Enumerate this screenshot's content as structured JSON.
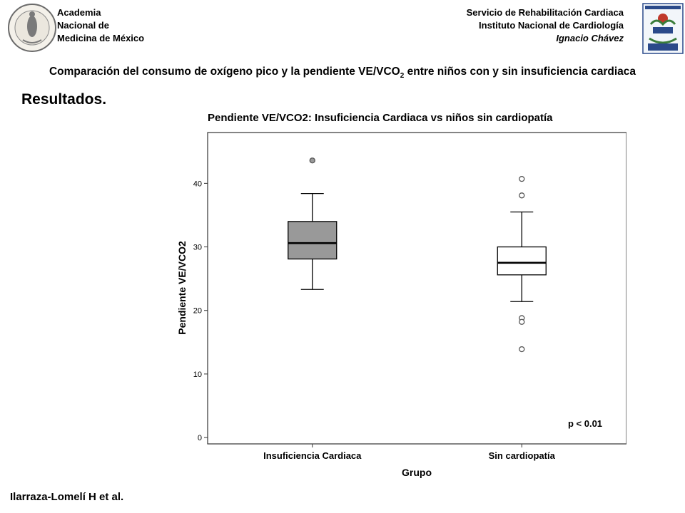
{
  "header": {
    "left_lines": [
      "Academia",
      "Nacional de",
      "Medicina de México"
    ],
    "right_lines": [
      "Servicio de Rehabilitación Cardiaca",
      "Instituto Nacional de Cardiología",
      "Ignacio Chávez"
    ]
  },
  "logos": {
    "left": "Academia Nacional de Medicina de México seal (150 años)",
    "right": "Instituto Nacional de Cardiología Ignacio Chávez crest"
  },
  "subtitle_parts": {
    "before": "Comparación del consumo de oxígeno pico y la pendiente VE/VCO",
    "subscript": "2",
    "after": " entre niños con y sin insuficiencia cardiaca"
  },
  "section_title": "Resultados.",
  "author": "Ilarraza-Lomelí H et al.",
  "colors": {
    "box_ic": "#999999",
    "box_sin": "#ffffff",
    "outlier_ic": "#999999"
  },
  "chart_data": {
    "type": "box",
    "title": "Pendiente VE/VCO2: Insuficiencia Cardiaca vs niños sin cardiopatía",
    "xlabel": "Grupo",
    "ylabel": "Pendiente VE/VCO2",
    "ylim": [
      -1,
      48
    ],
    "yticks": [
      0,
      10,
      20,
      30,
      40
    ],
    "grid": false,
    "annotation": "p < 0.01",
    "categories": [
      "Insuficiencia Cardiaca",
      "Sin cardiopatía"
    ],
    "boxes": [
      {
        "name": "Insuficiencia Cardiaca",
        "whisker_low": 23.3,
        "q1": 28.1,
        "median": 30.6,
        "q3": 34.0,
        "whisker_high": 38.4,
        "outliers": [
          43.6
        ]
      },
      {
        "name": "Sin cardiopatía",
        "whisker_low": 21.4,
        "q1": 25.6,
        "median": 27.5,
        "q3": 30.0,
        "whisker_high": 35.5,
        "outliers": [
          40.7,
          38.1,
          18.8,
          18.2,
          13.9
        ]
      }
    ]
  }
}
